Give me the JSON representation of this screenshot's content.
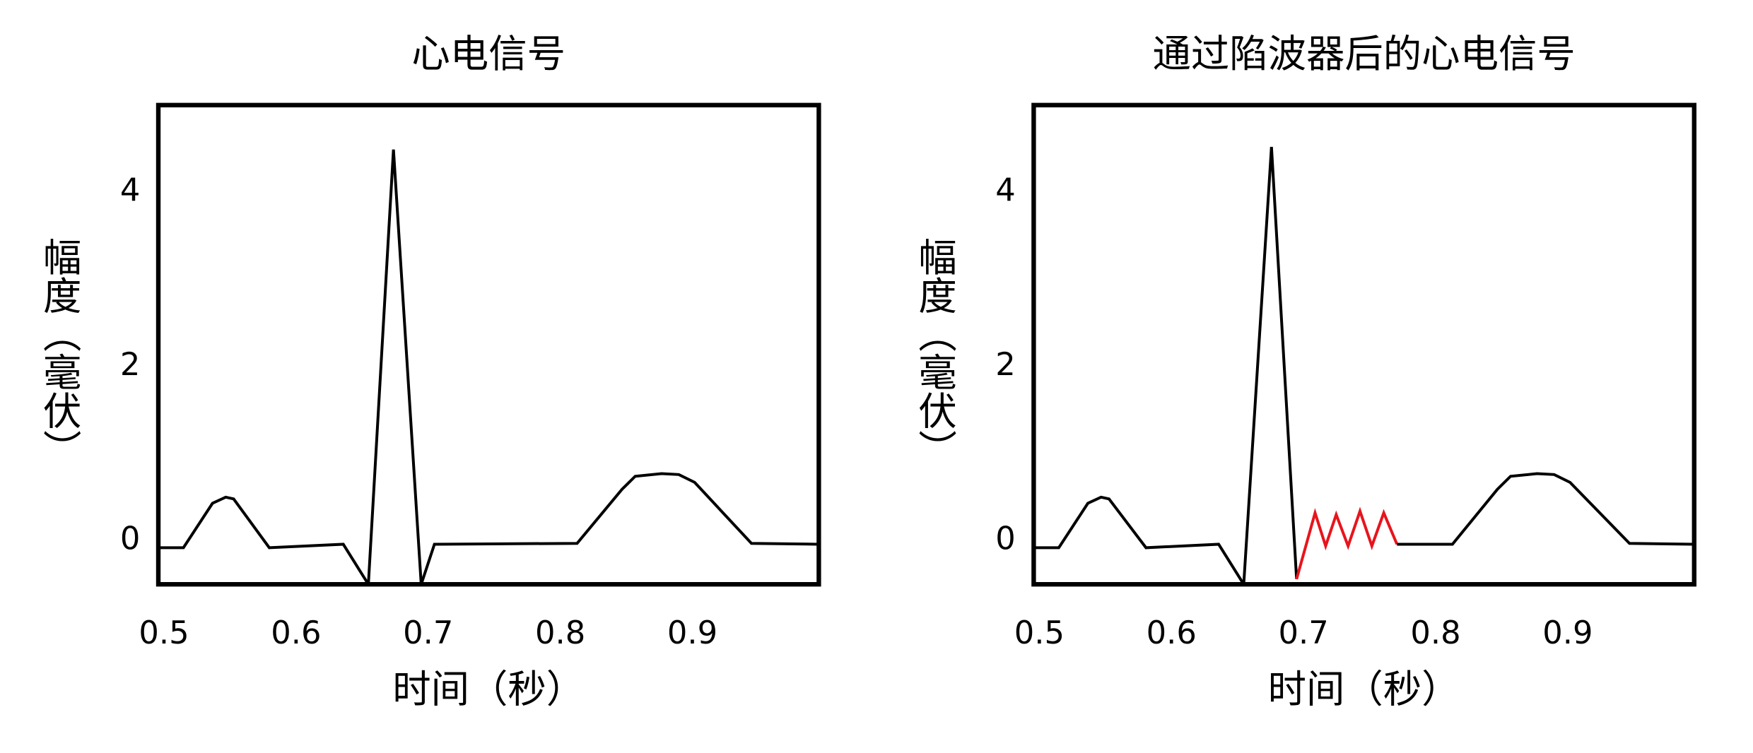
{
  "chart_data": [
    {
      "type": "line",
      "title": "心电信号",
      "xlabel": "时间（秒）",
      "ylabel": "幅度（毫伏）",
      "xlim": [
        0.5,
        1.0
      ],
      "xticks": [
        0.5,
        0.6,
        0.7,
        0.8,
        0.9
      ],
      "ylim": [
        -0.5,
        5
      ],
      "yticks": [
        0,
        2,
        4
      ],
      "series": [
        {
          "color": "#000000",
          "x": [
            0.5,
            0.519,
            0.541,
            0.551,
            0.557,
            0.584,
            0.64,
            0.659,
            0.678,
            0.699,
            0.709,
            0.817,
            0.851,
            0.861,
            0.881,
            0.894,
            0.906,
            0.949,
            1.0
          ],
          "values": [
            -0.08,
            -0.08,
            0.43,
            0.5,
            0.48,
            -0.08,
            -0.04,
            -0.5,
            4.49,
            -0.5,
            -0.04,
            -0.03,
            0.59,
            0.74,
            0.77,
            0.76,
            0.67,
            -0.03,
            -0.04
          ]
        }
      ]
    },
    {
      "type": "line",
      "title": "通过陷波器后的心电信号",
      "xlabel": "时间（秒）",
      "ylabel": "幅度（毫伏）",
      "xlim": [
        0.5,
        1.0
      ],
      "xticks": [
        0.5,
        0.6,
        0.7,
        0.8,
        0.9
      ],
      "ylim": [
        -0.5,
        5
      ],
      "yticks": [
        0,
        2,
        4
      ],
      "series": [
        {
          "color": "#000000",
          "x": [
            0.5,
            0.519,
            0.541,
            0.551,
            0.557,
            0.585,
            0.64,
            0.659,
            0.68,
            0.699
          ],
          "values": [
            -0.08,
            -0.08,
            0.43,
            0.5,
            0.48,
            -0.08,
            -0.04,
            -0.5,
            4.52,
            -0.44
          ]
        },
        {
          "color": "#e8141c",
          "x": [
            0.699,
            0.713,
            0.721,
            0.729,
            0.738,
            0.747,
            0.756,
            0.765,
            0.775
          ],
          "values": [
            -0.44,
            0.32,
            -0.06,
            0.3,
            -0.06,
            0.34,
            -0.06,
            0.32,
            -0.04
          ]
        },
        {
          "color": "#000000",
          "x": [
            0.775,
            0.817,
            0.851,
            0.861,
            0.881,
            0.894,
            0.906,
            0.951,
            1.0
          ],
          "values": [
            -0.04,
            -0.04,
            0.59,
            0.74,
            0.77,
            0.76,
            0.67,
            -0.03,
            -0.04
          ]
        }
      ]
    }
  ]
}
